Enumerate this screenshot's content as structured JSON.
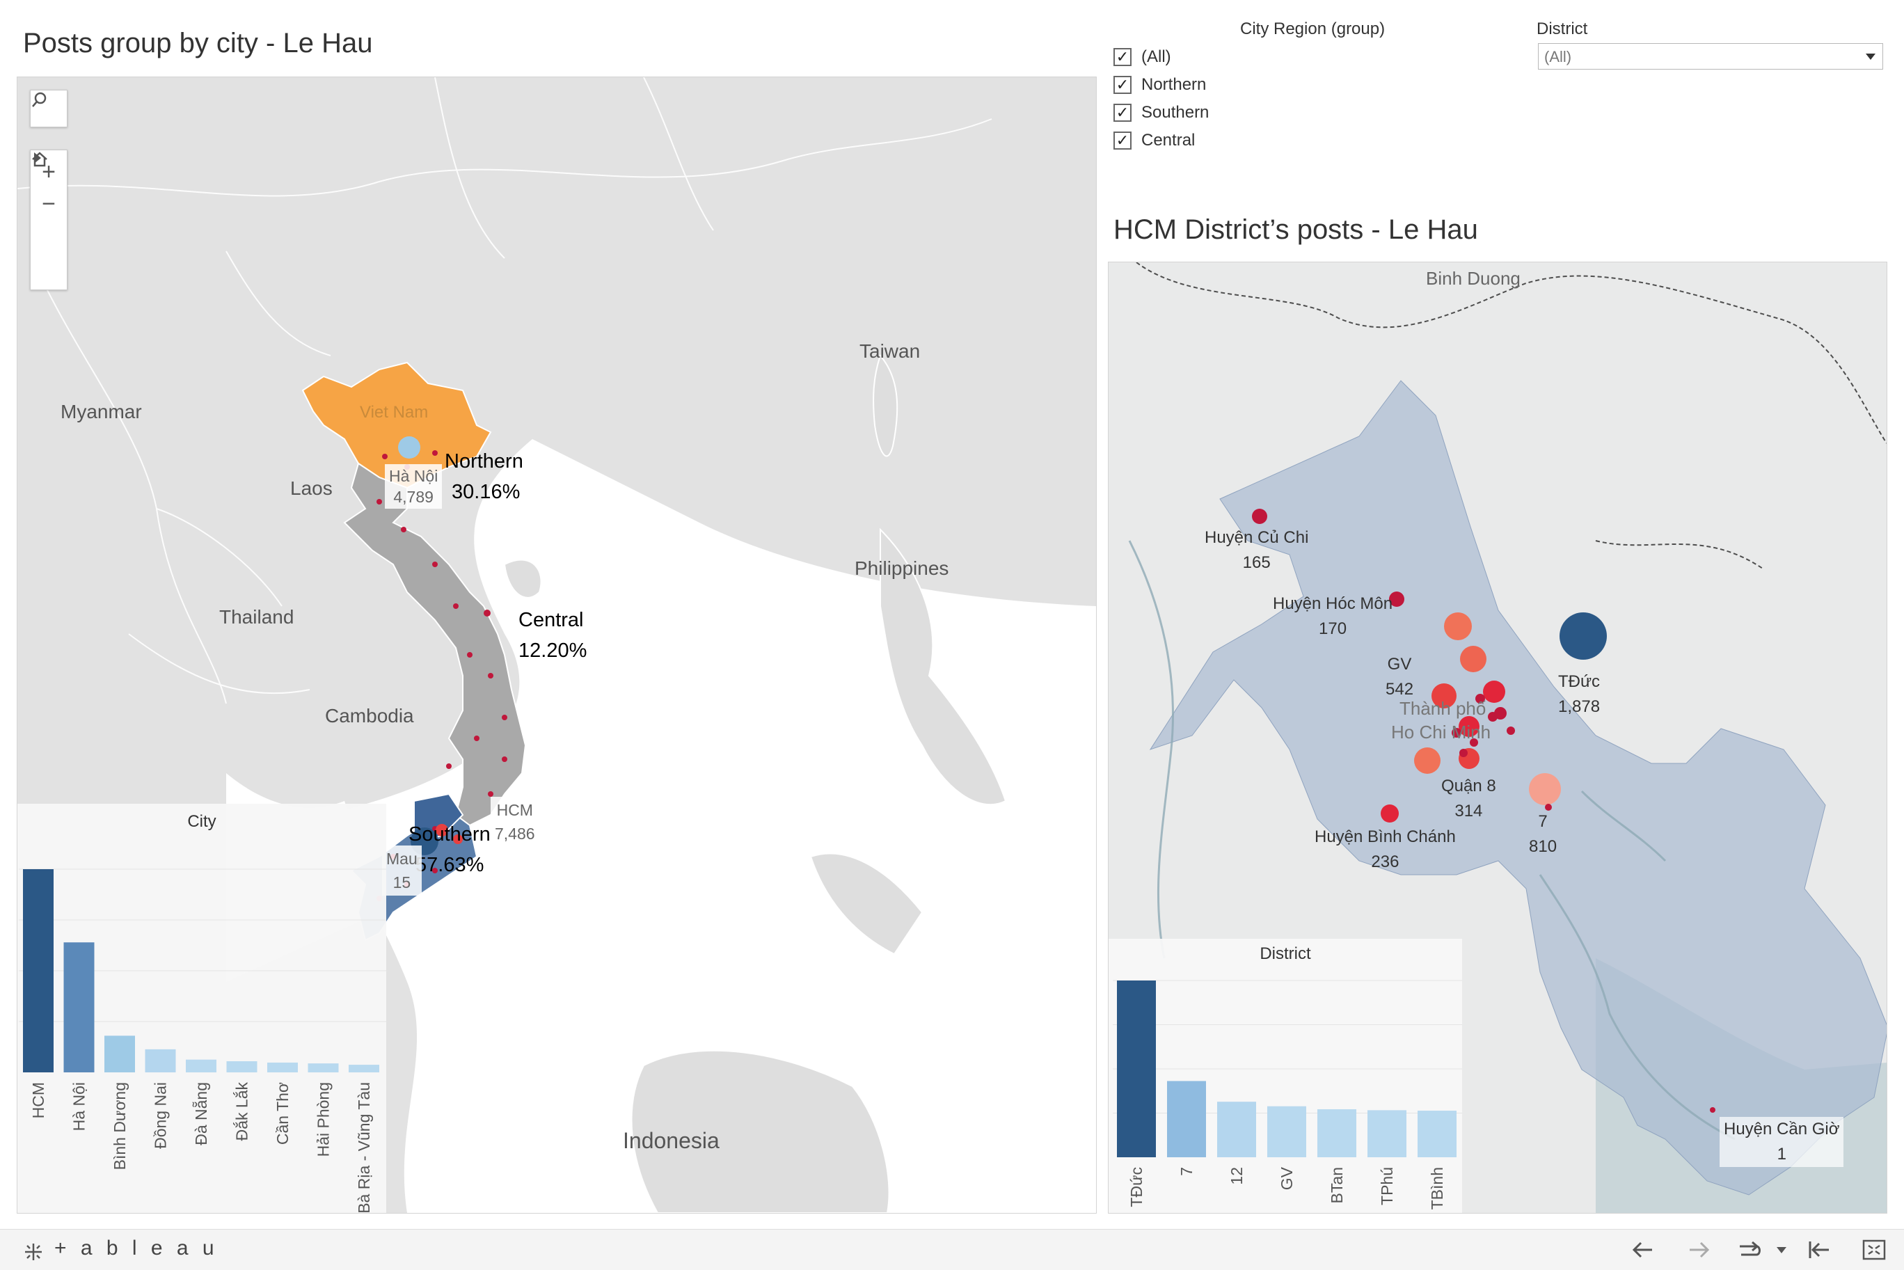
{
  "left": {
    "title": "Posts group by city -  Le Hau",
    "map_labels": [
      "Myanmar",
      "Laos",
      "Thailand",
      "Cambodia",
      "Taiwan",
      "Philippines",
      "Indonesia",
      "Viet Nam"
    ],
    "regions": [
      {
        "name": "Northern",
        "pct": "30.16%",
        "color": "#f6a445"
      },
      {
        "name": "Central",
        "pct": "12.20%",
        "color": "#a9a9a9"
      },
      {
        "name": "Southern",
        "pct": "57.63%",
        "color": "#5b7fab"
      }
    ],
    "city_labels": [
      {
        "name": "Hà Nội",
        "value": "4,789"
      },
      {
        "name": "HCM",
        "value": "7,486"
      },
      {
        "name": "Mau",
        "value": "15"
      }
    ],
    "city_chart": {
      "title": "City",
      "chart_data": {
        "type": "bar",
        "categories": [
          "HCM",
          "Hà Nội",
          "Bình Dương",
          "Đồng Nai",
          "Đà Nẵng",
          "Đắk Lắk",
          "Cần Thơ",
          "Hải Phòng",
          "Bà Rịa - Vũng Tàu"
        ],
        "values": [
          7486,
          4789,
          1350,
          850,
          470,
          410,
          360,
          330,
          280
        ],
        "colors": [
          "#2b5886",
          "#5b89b9",
          "#9ecae6",
          "#b4d6ee",
          "#b8d9ef",
          "#b8d9ef",
          "#b8d9ef",
          "#b8d9ef",
          "#b8d9ef"
        ]
      }
    }
  },
  "filters": {
    "region_title": "City Region (group)",
    "region_options": [
      "(All)",
      "Northern",
      "Southern",
      "Central"
    ],
    "district_title": "District",
    "district_value": "(All)"
  },
  "right": {
    "title": "HCM District’s posts -  Le Hau",
    "map_labels": [
      "Binh Duong",
      "Thành phố",
      "Ho Chi Minh"
    ],
    "districts": [
      {
        "name": "Huyện Củ Chi",
        "value": "165"
      },
      {
        "name": "Huyện Hóc Môn",
        "value": "170"
      },
      {
        "name": "GV",
        "value": "542"
      },
      {
        "name": "TĐức",
        "value": "1,878"
      },
      {
        "name": "Quận 8",
        "value": "314"
      },
      {
        "name": "7",
        "value": "810"
      },
      {
        "name": "Huyện Bình Chánh",
        "value": "236"
      },
      {
        "name": "Huyện Cần Giờ",
        "value": "1"
      }
    ],
    "district_chart": {
      "title": "District",
      "chart_data": {
        "type": "bar",
        "categories": [
          "TĐức",
          "7",
          "12",
          "GV",
          "BTan",
          "TPhú",
          "TBình"
        ],
        "values": [
          1878,
          810,
          590,
          542,
          510,
          500,
          495
        ],
        "colors": [
          "#2b5886",
          "#8fbbe0",
          "#b4d6ee",
          "#b8d9ef",
          "#b8d9ef",
          "#b8d9ef",
          "#b8d9ef"
        ]
      }
    }
  },
  "toolbar": {
    "brand": "+ a b l e a u",
    "icons": [
      "undo-icon",
      "redo-icon",
      "revert-icon",
      "dropdown-icon",
      "reset-icon",
      "fullscreen-icon"
    ]
  }
}
